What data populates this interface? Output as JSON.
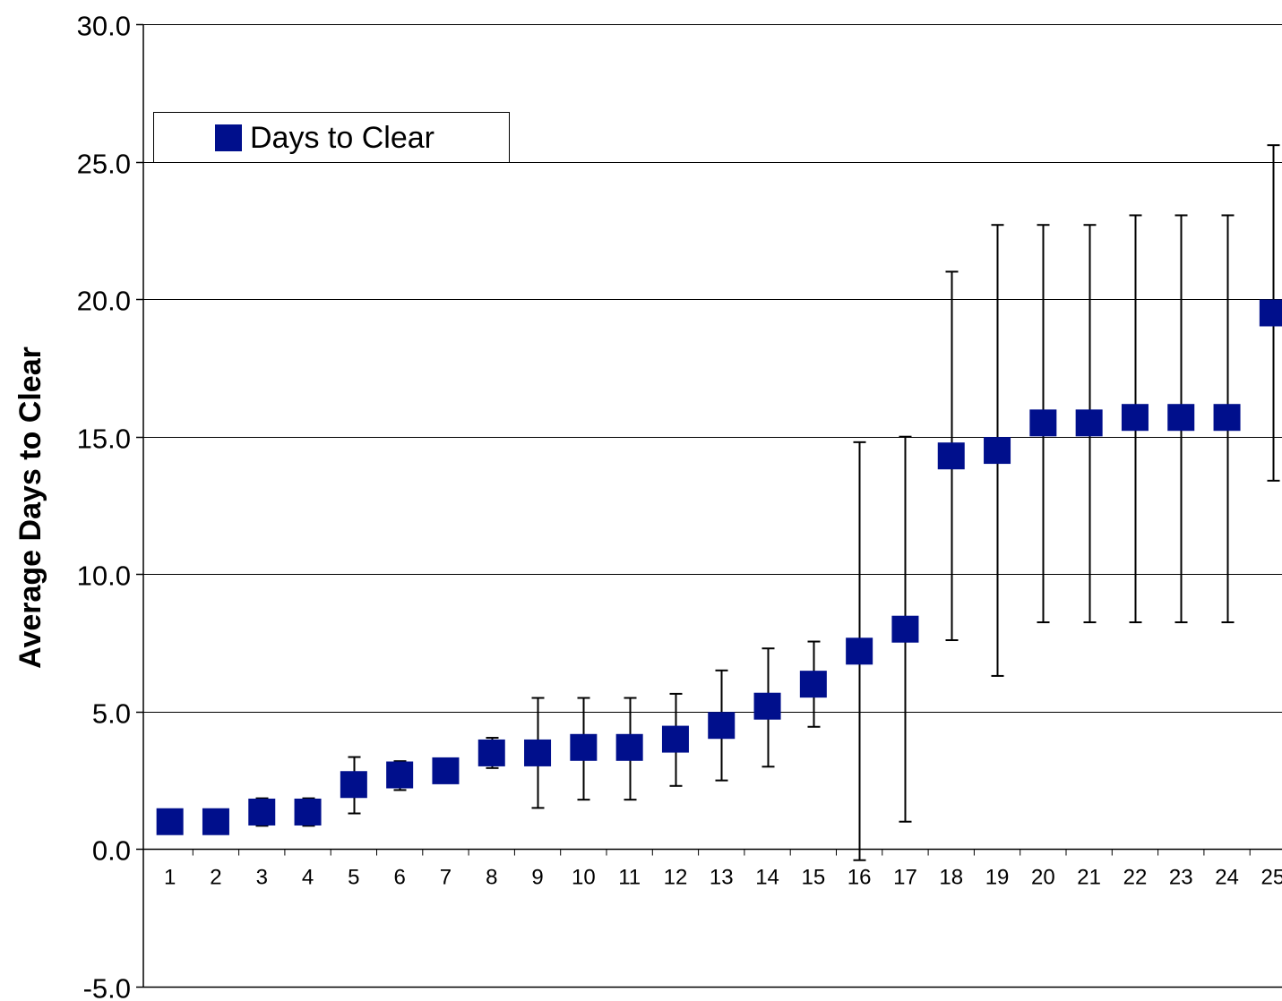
{
  "chart_data": {
    "type": "scatter",
    "title": "",
    "xlabel": "",
    "ylabel": "Average Days to Clear",
    "ylim": [
      -5,
      30
    ],
    "yticks": [
      -5,
      0,
      5,
      10,
      15,
      20,
      25,
      30
    ],
    "ytick_labels": [
      "-5.0",
      "0.0",
      "5.0",
      "10.0",
      "15.0",
      "20.0",
      "25.0",
      "30.0"
    ],
    "categories": [
      "1",
      "2",
      "3",
      "4",
      "5",
      "6",
      "7",
      "8",
      "9",
      "10",
      "11",
      "12",
      "13",
      "14",
      "15",
      "16",
      "17",
      "18",
      "19",
      "20",
      "21",
      "22",
      "23",
      "24",
      "25"
    ],
    "grid": "horizontal",
    "legend_position": "top-left",
    "series": [
      {
        "name": "Days to Clear",
        "color": "#000f8c",
        "marker": "square",
        "values": [
          1.0,
          1.0,
          1.35,
          1.35,
          2.35,
          2.7,
          2.85,
          3.5,
          3.5,
          3.7,
          3.7,
          4.0,
          4.5,
          5.2,
          6.0,
          7.2,
          8.0,
          14.3,
          14.5,
          15.5,
          15.5,
          15.7,
          15.7,
          15.7,
          19.5
        ],
        "error_low": [
          1.0,
          1.0,
          0.85,
          0.85,
          1.3,
          2.15,
          2.85,
          2.95,
          1.5,
          1.8,
          1.8,
          2.3,
          2.5,
          3.0,
          4.45,
          -0.4,
          1.0,
          7.6,
          6.3,
          8.25,
          8.25,
          8.25,
          8.25,
          8.25,
          13.4
        ],
        "error_high": [
          1.0,
          1.0,
          1.85,
          1.85,
          3.35,
          3.2,
          2.85,
          4.05,
          5.5,
          5.5,
          5.5,
          5.65,
          6.5,
          7.3,
          7.55,
          14.8,
          15.0,
          21.0,
          22.7,
          22.7,
          22.7,
          23.05,
          23.05,
          23.05,
          25.6
        ]
      }
    ]
  }
}
